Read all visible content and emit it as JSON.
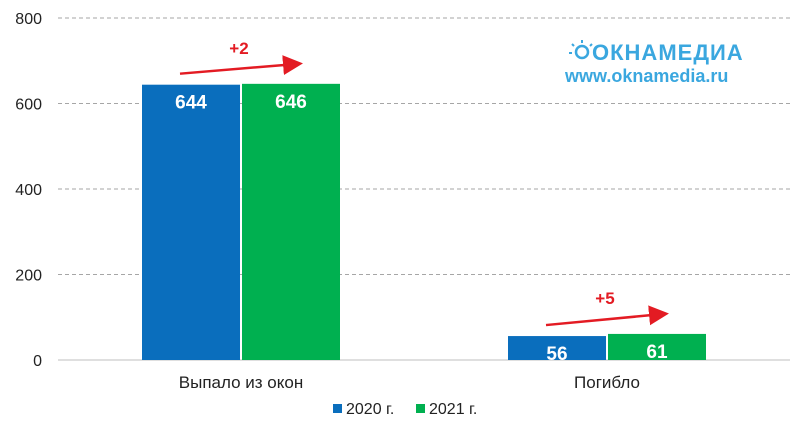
{
  "chart_data": {
    "type": "bar",
    "categories": [
      "Выпало из окон",
      "Погибло"
    ],
    "series": [
      {
        "name": "2020 г.",
        "values": [
          644,
          56
        ],
        "color": "#0a6ebd"
      },
      {
        "name": "2021 г.",
        "values": [
          646,
          61
        ],
        "color": "#00b050"
      }
    ],
    "ylim": [
      0,
      800
    ],
    "yticks": [
      0,
      200,
      400,
      600,
      800
    ],
    "grid": true,
    "legend": "bottom",
    "annotations": [
      {
        "text": "+2",
        "category": "Выпало из окон",
        "color": "#e31b23"
      },
      {
        "text": "+5",
        "category": "Погибло",
        "color": "#e31b23"
      }
    ]
  },
  "watermark": {
    "logo": "ОКНАМЕДИА",
    "url": "www.oknamedia.ru",
    "color": "#3aa7df"
  }
}
